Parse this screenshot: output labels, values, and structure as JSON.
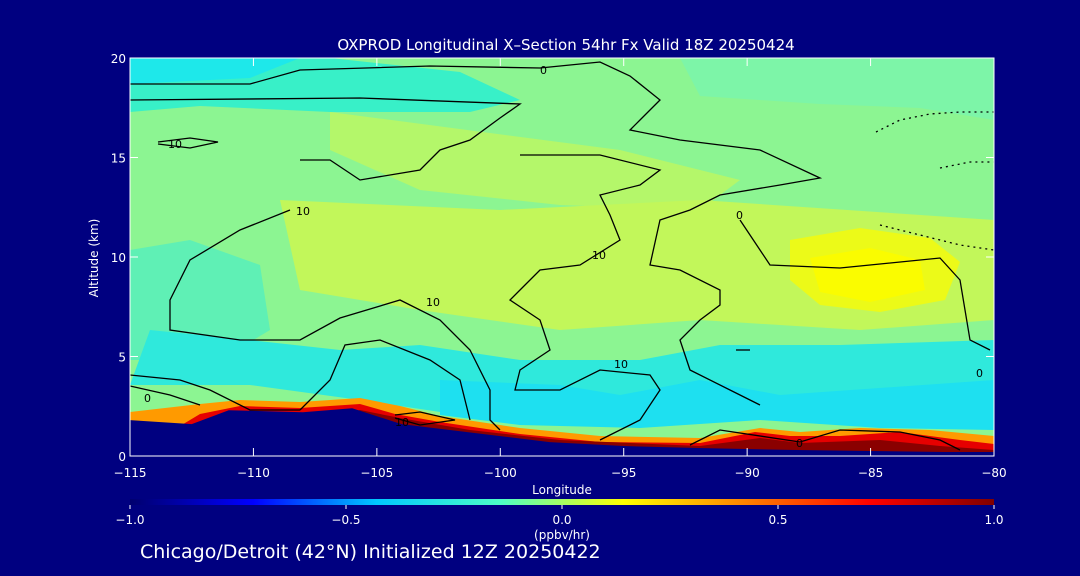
{
  "chart_data": {
    "type": "heatmap",
    "title": "OXPROD Longitudinal X–Section 54hr  Fx Valid 18Z 20250424",
    "xlabel": "Longitude",
    "ylabel": "Altitude (km)",
    "xlim": [
      -115,
      -80
    ],
    "ylim": [
      0,
      20
    ],
    "x_ticks": [
      -115,
      -110,
      -105,
      -100,
      -95,
      -90,
      -85,
      -80
    ],
    "x_tick_labels": [
      "−115",
      "−110",
      "−105",
      "−100",
      "−95",
      "−90",
      "−85",
      "−80"
    ],
    "y_ticks": [
      0,
      5,
      10,
      15,
      20
    ],
    "y_tick_labels": [
      "0",
      "5",
      "10",
      "15",
      "20"
    ],
    "colorbar": {
      "min": -1.0,
      "max": 1.0,
      "units": "(ppbv/hr)",
      "ticks": [
        -1.0,
        -0.5,
        0.0,
        0.5,
        1.0
      ],
      "tick_labels": [
        "−1.0",
        "−0.5",
        "0.0",
        "0.5",
        "1.0"
      ],
      "colors": [
        "#00006e",
        "#0000ff",
        "#00c8ff",
        "#4dffc6",
        "#ffff00",
        "#ff8000",
        "#ff0000",
        "#800000"
      ]
    },
    "contour_labels": [
      "0",
      "10",
      "10",
      "10",
      "10",
      "10",
      "10",
      "0",
      "0",
      "0",
      "0"
    ],
    "terrain": [
      [
        -115,
        1.8
      ],
      [
        -112.5,
        1.6
      ],
      [
        -111,
        2.3
      ],
      [
        -108,
        2.2
      ],
      [
        -106,
        2.4
      ],
      [
        -104,
        1.6
      ],
      [
        -102,
        1.3
      ],
      [
        -100,
        1.0
      ],
      [
        -98,
        0.7
      ],
      [
        -95,
        0.5
      ],
      [
        -92,
        0.4
      ],
      [
        -88,
        0.3
      ],
      [
        -85,
        0.25
      ],
      [
        -82,
        0.2
      ],
      [
        -80,
        0.2
      ]
    ]
  },
  "footer": "Chicago/Detroit (42°N) Initialized 12Z 20250422"
}
